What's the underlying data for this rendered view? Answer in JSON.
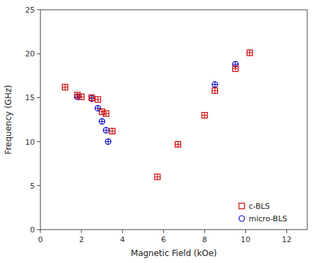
{
  "chart_data": {
    "type": "scatter",
    "xlabel": "Magnetic Field (kOe)",
    "ylabel": "Frequency (GHz)",
    "series": [
      {
        "name": "c-BLS",
        "color": "#cc0000",
        "marker": "square",
        "x": [
          1.2,
          1.8,
          2.0,
          2.5,
          2.8,
          3.0,
          3.2,
          3.5,
          5.7,
          6.7,
          8.0,
          8.5,
          9.5,
          10.2
        ],
        "values": [
          16.2,
          15.3,
          15.1,
          15.0,
          14.8,
          13.4,
          13.2,
          11.2,
          6.0,
          9.7,
          13.0,
          15.8,
          18.3,
          20.1
        ]
      },
      {
        "name": "micro-BLS",
        "color": "#0000cc",
        "marker": "circle",
        "x": [
          1.8,
          2.5,
          2.8,
          3.0,
          3.2,
          3.3,
          8.5,
          9.5
        ],
        "values": [
          15.1,
          14.9,
          13.8,
          12.3,
          11.3,
          10.0,
          16.5,
          18.8
        ]
      }
    ],
    "xlim": [
      0,
      13
    ],
    "ylim": [
      0,
      25
    ],
    "xticks": [
      0,
      2,
      4,
      6,
      8,
      10,
      12
    ],
    "yticks": [
      0,
      5,
      10,
      15,
      20,
      25
    ],
    "grid": false,
    "legend": "lower right"
  }
}
